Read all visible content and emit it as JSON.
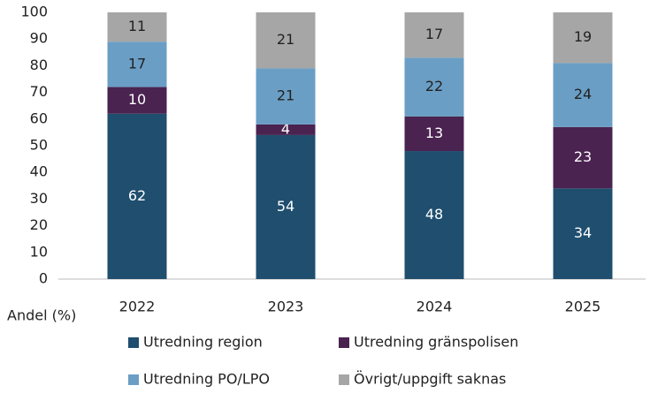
{
  "chart_data": {
    "type": "stacked_bar",
    "y_axis_label": "Andel (%)",
    "categories": [
      "2022",
      "2023",
      "2024",
      "2025"
    ],
    "series": [
      {
        "name": "Utredning region",
        "color": "#1f4e6e",
        "label_color": "#ffffff",
        "values": [
          62,
          54,
          48,
          34
        ]
      },
      {
        "name": "Utredning gränspolisen",
        "color": "#4a2350",
        "label_color": "#ffffff",
        "values": [
          10,
          4,
          13,
          23
        ]
      },
      {
        "name": "Utredning PO/LPO",
        "color": "#6a9ec5",
        "label_color": "#222222",
        "values": [
          17,
          21,
          22,
          24
        ]
      },
      {
        "name": "Övrigt/uppgift saknas",
        "color": "#a6a6a6",
        "label_color": "#222222",
        "values": [
          11,
          21,
          17,
          19
        ]
      }
    ],
    "ylim": [
      0,
      100
    ],
    "yticks": [
      0,
      10,
      20,
      30,
      40,
      50,
      60,
      70,
      80,
      90,
      100
    ],
    "grid": false
  }
}
